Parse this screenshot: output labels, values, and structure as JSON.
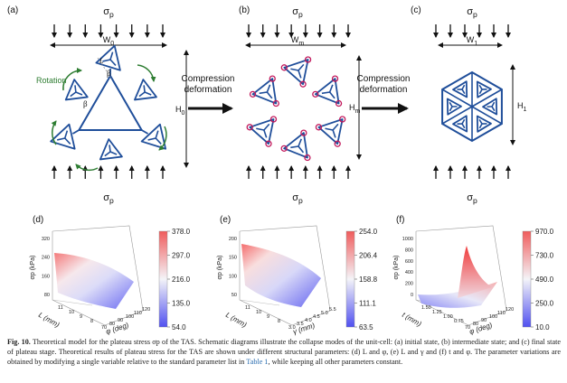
{
  "panels": {
    "a": {
      "label": "(a)",
      "sigma": "σ",
      "sub": "p",
      "width_label": "W",
      "width_sub": "0",
      "height_label": "H",
      "height_sub": "0",
      "rotation": "Rotation",
      "L": "L",
      "beta": "β"
    },
    "b": {
      "label": "(b)",
      "sigma": "σ",
      "sub": "p",
      "width_label": "W",
      "width_sub": "m",
      "height_label": "H",
      "height_sub": "m"
    },
    "c": {
      "label": "(c)",
      "sigma": "σ",
      "sub": "p",
      "width_label": "W",
      "width_sub": "1",
      "height_label": "H",
      "height_sub": "1"
    },
    "d": {
      "label": "(d)"
    },
    "e": {
      "label": "(e)"
    },
    "f": {
      "label": "(f)"
    }
  },
  "arrows": [
    {
      "line1": "Compression",
      "line2": "deformation"
    },
    {
      "line1": "Compression",
      "line2": "deformation"
    }
  ],
  "colors": {
    "structure": "#1f4e9a",
    "rotation": "#2e7d32",
    "hinge": "#c2185b",
    "cold": "#5b5bf0",
    "hot": "#f07070"
  },
  "chart_data": [
    {
      "type": "surface3d",
      "panel": "(d)",
      "zlabel": "σp (kPa)",
      "zticks": [
        "320",
        "240",
        "160",
        "80"
      ],
      "xlabel": "L (mm)",
      "xticks": [
        "11",
        "10",
        "9",
        "8"
      ],
      "ylabel": "φ (deg)",
      "yticks": [
        "70",
        "80",
        "90",
        "100",
        "110",
        "120"
      ],
      "colorbar": [
        "378.0",
        "297.0",
        "216.0",
        "135.0",
        "54.0"
      ],
      "zrange": [
        54.0,
        378.0
      ]
    },
    {
      "type": "surface3d",
      "panel": "(e)",
      "zlabel": "σp (kPa)",
      "zticks": [
        "200",
        "150",
        "100",
        "50"
      ],
      "xlabel": "L (mm)",
      "xticks": [
        "11",
        "10",
        "9",
        "8"
      ],
      "ylabel": "γ (mm)",
      "yticks": [
        "3.0",
        "3.5",
        "4.0",
        "4.5",
        "5.0",
        "5.5"
      ],
      "colorbar": [
        "254.0",
        "206.4",
        "158.8",
        "111.1",
        "63.5"
      ],
      "zrange": [
        63.5,
        254.0
      ]
    },
    {
      "type": "surface3d",
      "panel": "(f)",
      "zlabel": "σp (kPa)",
      "zticks": [
        "1000",
        "800",
        "600",
        "400",
        "200",
        "0"
      ],
      "xlabel": "t (mm)",
      "xticks": [
        "1.50",
        "1.25",
        "1.00",
        "0.75"
      ],
      "ylabel": "φ (deg)",
      "yticks": [
        "70",
        "80",
        "90",
        "100",
        "110",
        "120"
      ],
      "colorbar": [
        "970.0",
        "730.0",
        "490.0",
        "250.0",
        "10.0"
      ],
      "zrange": [
        10.0,
        970.0
      ]
    }
  ],
  "caption": {
    "fig": "Fig. 10.",
    "pre_link": "Theoretical model for the plateau stress σp of the TAS. Schematic diagrams illustrate the collapse modes of the unit-cell: (a) initial state, (b) intermediate state; and (c) final state of plateau stage. Theoretical results of plateau stress for the TAS are shown under different structural parameters: (d) L and φ, (e) L and γ and (f) t and φ. The parameter variations are obtained by modifying a single variable relative to the standard parameter list in",
    "link": "Table 1",
    "post_link": ", while keeping all other parameters constant."
  }
}
